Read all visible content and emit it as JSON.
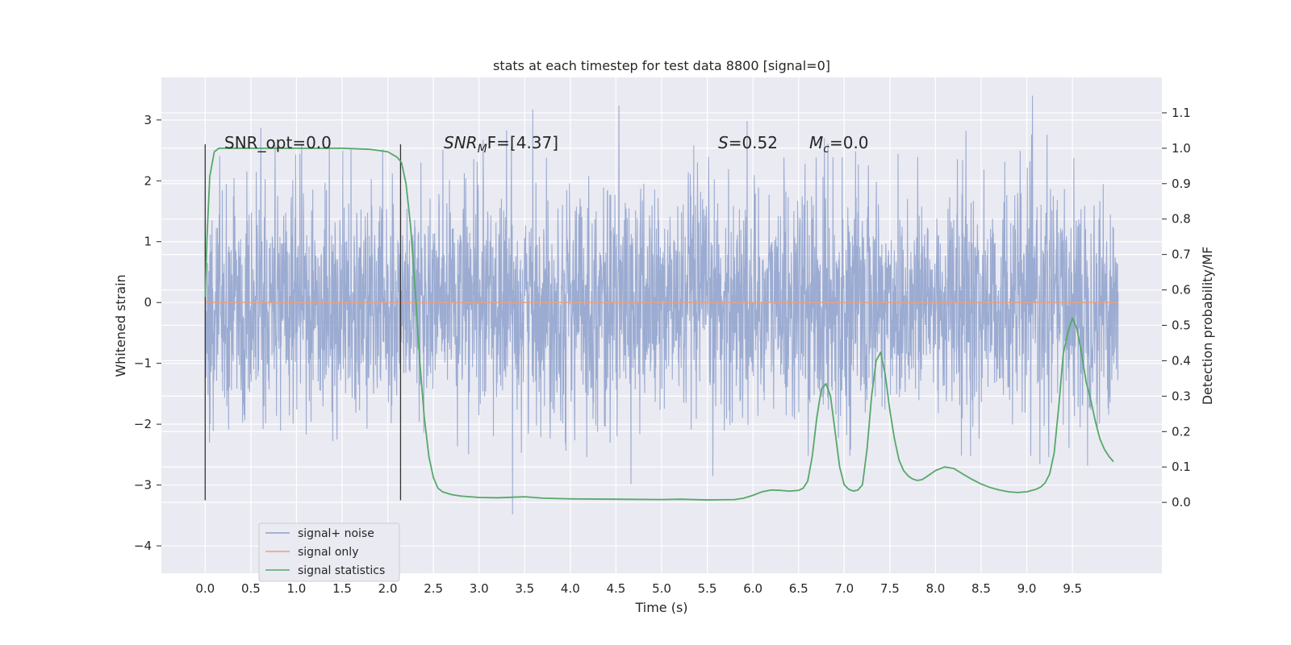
{
  "chart_data": {
    "type": "line",
    "title": "stats at each timestep for test data 8800 [signal=0]",
    "xlabel": "Time (s)",
    "ylabel_left": "Whitened strain",
    "ylabel_right": "Detection probability/MF",
    "xlim": [
      -0.48,
      10.48
    ],
    "ylim_left": [
      -4.45,
      3.7
    ],
    "ylim_right": [
      -0.2,
      1.2
    ],
    "x_ticks": [
      "0.0",
      "0.5",
      "1.0",
      "1.5",
      "2.0",
      "2.5",
      "3.0",
      "3.5",
      "4.0",
      "4.5",
      "5.0",
      "5.5",
      "6.0",
      "6.5",
      "7.0",
      "7.5",
      "8.0",
      "8.5",
      "9.0",
      "9.5"
    ],
    "y_ticks_left": [
      "−4",
      "−3",
      "−2",
      "−1",
      "0",
      "1",
      "2",
      "3"
    ],
    "y_ticks_right": [
      "0.0",
      "0.1",
      "0.2",
      "0.3",
      "0.4",
      "0.5",
      "0.6",
      "0.7",
      "0.8",
      "0.9",
      "1.0",
      "1.1"
    ],
    "grid": true,
    "legend_position": "lower-left",
    "colors": {
      "background": "#eaeaf2",
      "grid": "#ffffff",
      "noise": "#8da0cb",
      "signal_only": "#e8a07e",
      "statistics": "#55a868",
      "marker": "#333333"
    },
    "annotations": {
      "snr_opt": "SNR_opt=0.0",
      "snr_mf_sym": "SNR",
      "snr_mf_sub": "M",
      "snr_mf_rest": "F=[4.37]",
      "s_sym": "S",
      "s_val": "=0.52",
      "mc_sym": "M",
      "mc_sub": "c",
      "mc_val": "=0.0"
    },
    "vertical_markers": [
      0.0,
      2.14
    ],
    "series": [
      {
        "name": "signal+ noise",
        "kind": "noise",
        "t_range": [
          0,
          10
        ],
        "values_range": [
          -3.5,
          3.4
        ]
      },
      {
        "name": "signal only",
        "kind": "constant",
        "x": [
          0,
          10
        ],
        "y": [
          0,
          0
        ]
      },
      {
        "name": "signal statistics",
        "kind": "statistics",
        "x": [
          0.0,
          0.02,
          0.05,
          0.1,
          0.15,
          0.2,
          0.3,
          0.5,
          1.0,
          1.5,
          1.8,
          2.0,
          2.1,
          2.15,
          2.2,
          2.25,
          2.3,
          2.35,
          2.4,
          2.45,
          2.5,
          2.55,
          2.6,
          2.7,
          2.8,
          3.0,
          3.2,
          3.5,
          3.7,
          4.0,
          4.5,
          5.0,
          5.2,
          5.5,
          5.8,
          5.9,
          6.0,
          6.1,
          6.2,
          6.3,
          6.4,
          6.5,
          6.55,
          6.6,
          6.65,
          6.7,
          6.75,
          6.8,
          6.85,
          6.9,
          6.95,
          7.0,
          7.05,
          7.1,
          7.15,
          7.2,
          7.25,
          7.3,
          7.35,
          7.4,
          7.45,
          7.5,
          7.55,
          7.6,
          7.65,
          7.7,
          7.75,
          7.8,
          7.85,
          7.9,
          8.0,
          8.1,
          8.2,
          8.3,
          8.4,
          8.5,
          8.6,
          8.7,
          8.8,
          8.9,
          9.0,
          9.1,
          9.15,
          9.2,
          9.25,
          9.3,
          9.35,
          9.4,
          9.45,
          9.5,
          9.55,
          9.6,
          9.65,
          9.7,
          9.75,
          9.8,
          9.85,
          9.9,
          9.95
        ],
        "y": [
          0.58,
          0.75,
          0.92,
          0.99,
          1.0,
          1.0,
          1.0,
          1.0,
          1.0,
          1.0,
          0.997,
          0.99,
          0.975,
          0.96,
          0.9,
          0.78,
          0.6,
          0.4,
          0.24,
          0.13,
          0.07,
          0.04,
          0.03,
          0.022,
          0.018,
          0.014,
          0.013,
          0.016,
          0.012,
          0.01,
          0.009,
          0.008,
          0.009,
          0.007,
          0.008,
          0.012,
          0.02,
          0.03,
          0.035,
          0.034,
          0.032,
          0.034,
          0.04,
          0.06,
          0.13,
          0.24,
          0.32,
          0.335,
          0.3,
          0.2,
          0.1,
          0.05,
          0.037,
          0.032,
          0.035,
          0.05,
          0.15,
          0.3,
          0.4,
          0.424,
          0.36,
          0.26,
          0.18,
          0.12,
          0.09,
          0.075,
          0.066,
          0.062,
          0.064,
          0.072,
          0.09,
          0.1,
          0.096,
          0.08,
          0.065,
          0.052,
          0.042,
          0.035,
          0.03,
          0.028,
          0.03,
          0.037,
          0.043,
          0.055,
          0.08,
          0.14,
          0.27,
          0.42,
          0.48,
          0.52,
          0.49,
          0.42,
          0.34,
          0.29,
          0.23,
          0.18,
          0.15,
          0.13,
          0.115
        ]
      }
    ]
  }
}
